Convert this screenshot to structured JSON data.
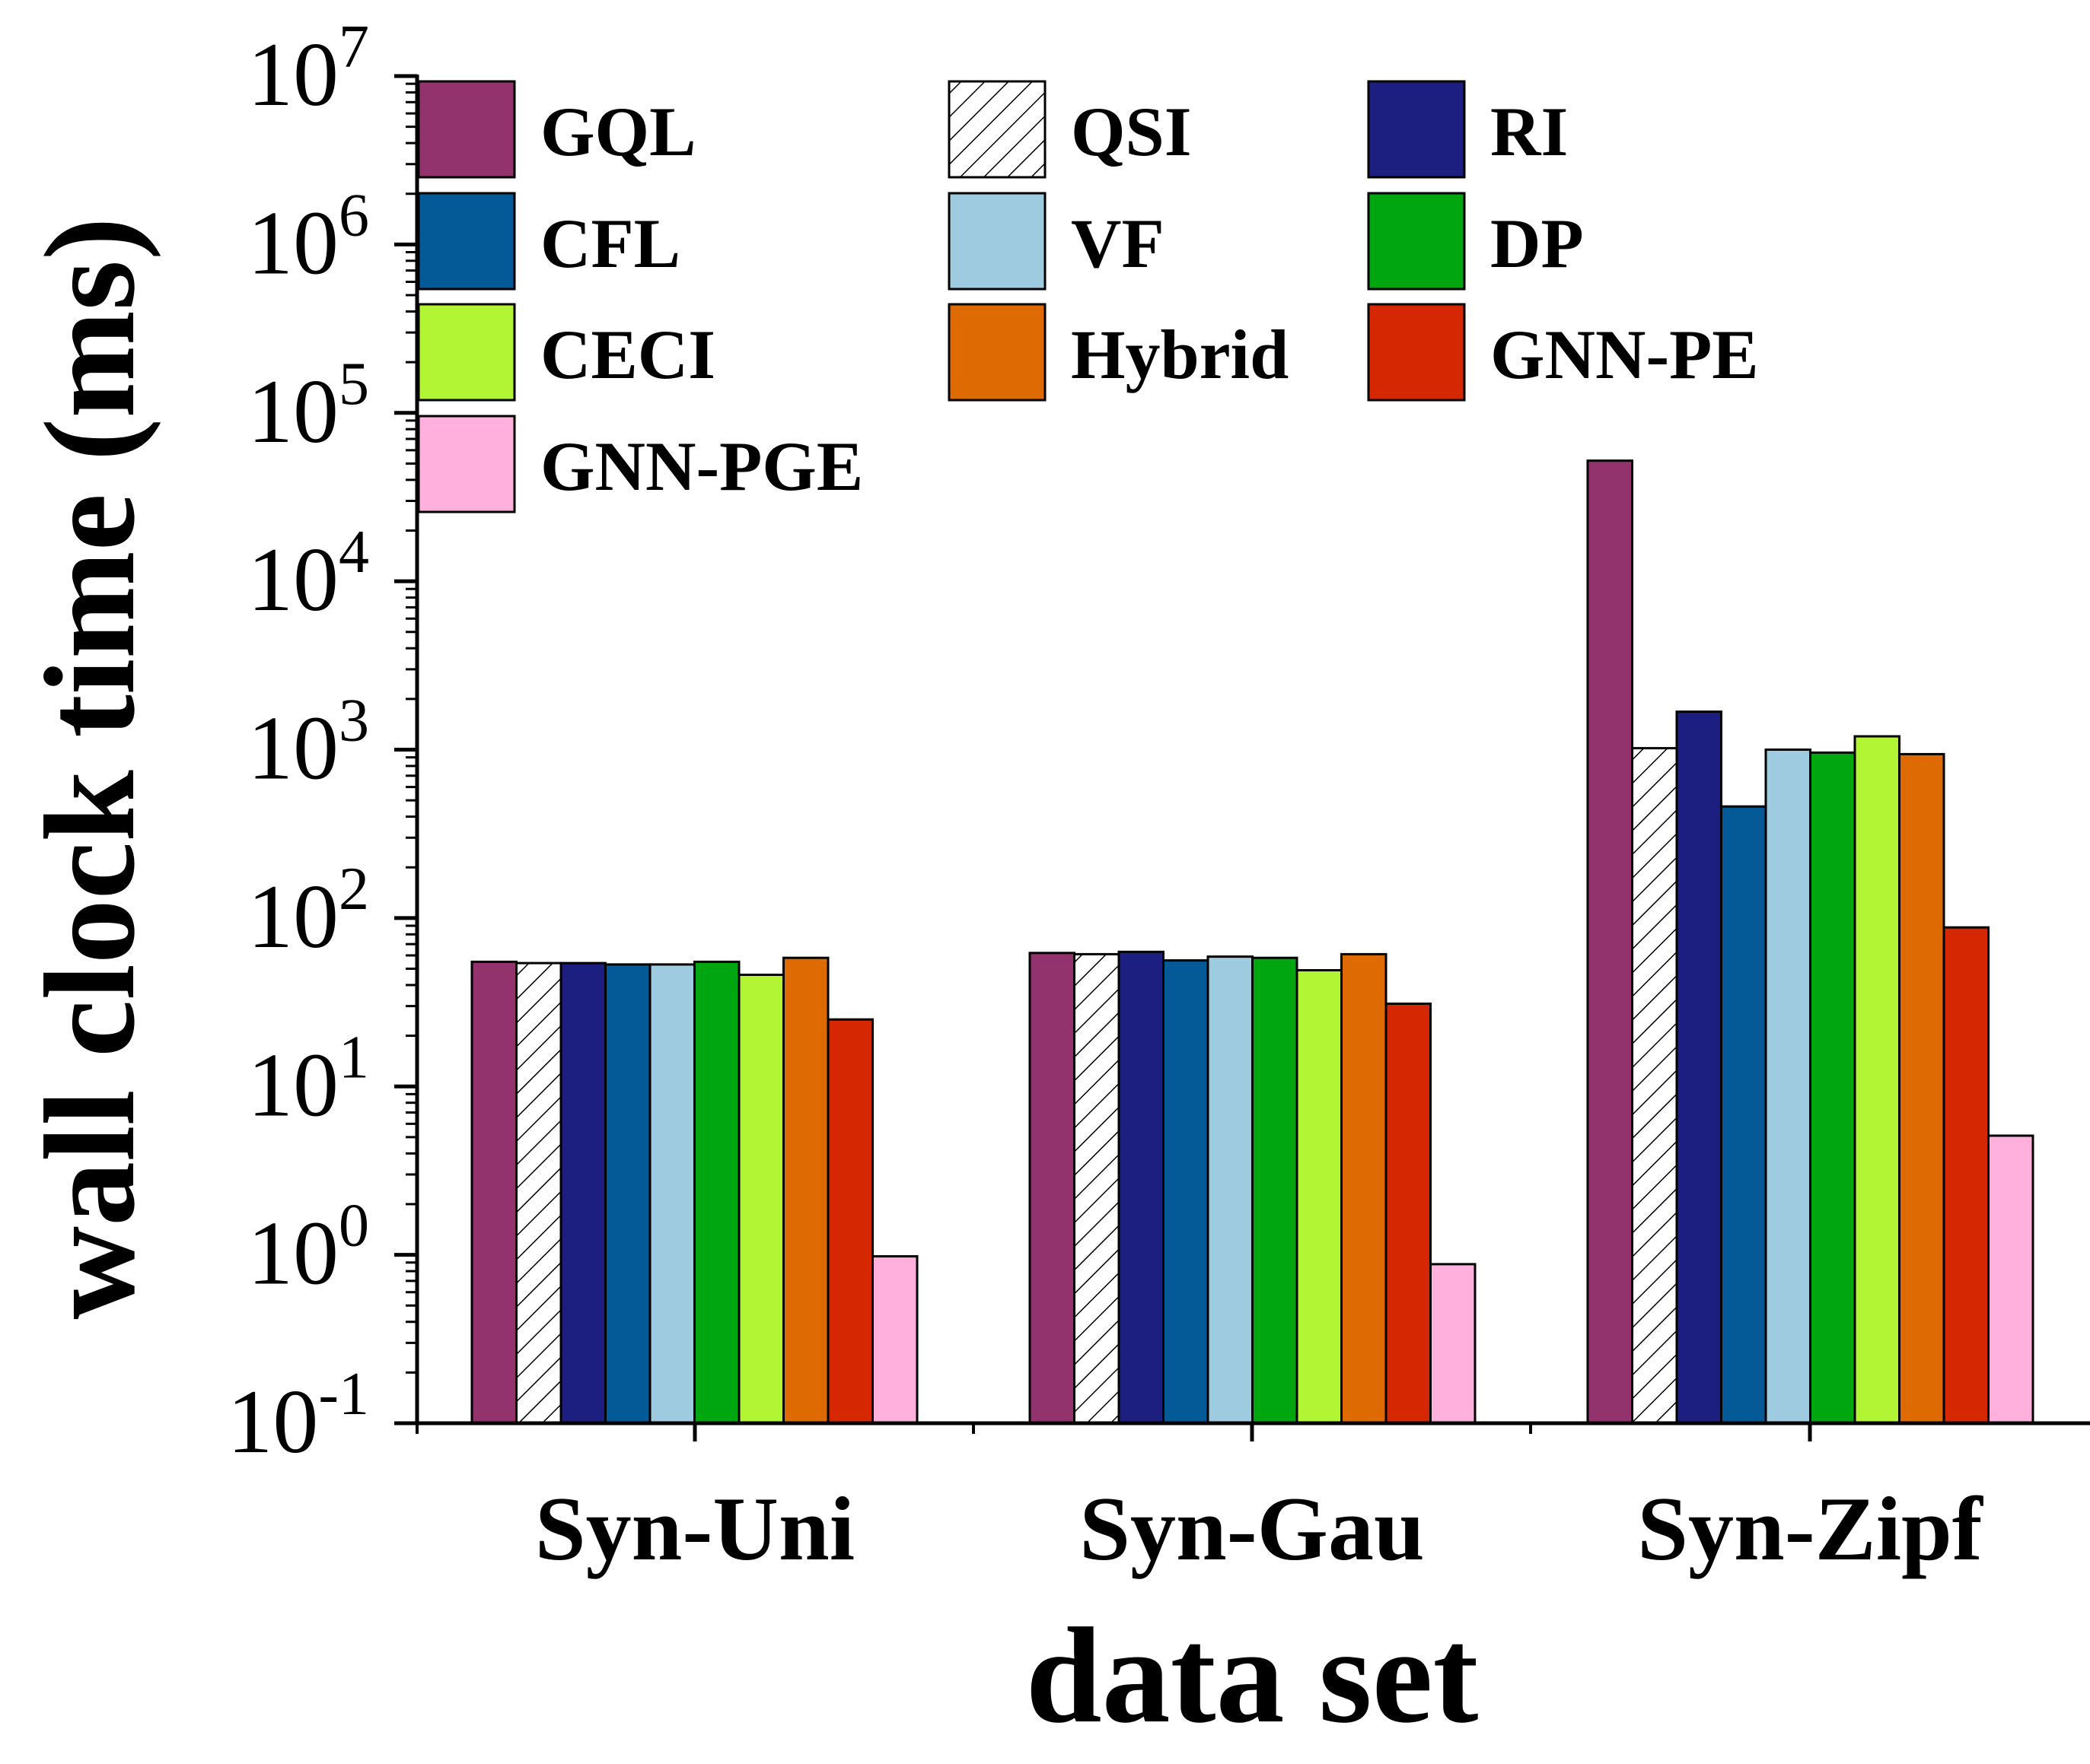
{
  "chart_data": {
    "type": "bar",
    "title": "",
    "xlabel": "data set",
    "ylabel": "wall clock time (ms)",
    "yscale": "log",
    "ylim": [
      0.1,
      10000000
    ],
    "yticks": [
      {
        "value": 0.1,
        "base": "10",
        "exp": "-1"
      },
      {
        "value": 1,
        "base": "10",
        "exp": "0"
      },
      {
        "value": 10,
        "base": "10",
        "exp": "1"
      },
      {
        "value": 100,
        "base": "10",
        "exp": "2"
      },
      {
        "value": 1000,
        "base": "10",
        "exp": "3"
      },
      {
        "value": 10000,
        "base": "10",
        "exp": "4"
      },
      {
        "value": 100000,
        "base": "10",
        "exp": "5"
      },
      {
        "value": 1000000,
        "base": "10",
        "exp": "6"
      },
      {
        "value": 10000000,
        "base": "10",
        "exp": "7"
      }
    ],
    "categories": [
      "Syn-Uni",
      "Syn-Gau",
      "Syn-Zipf"
    ],
    "legend_position": "top-left",
    "series": [
      {
        "name": "GQL",
        "color": "#93336e",
        "values": [
          55,
          62,
          52000
        ]
      },
      {
        "name": "QSI",
        "color": "#ffffff",
        "pattern": "hatch",
        "values": [
          54,
          61,
          1020
        ]
      },
      {
        "name": "RI",
        "color": "#1c1f80",
        "values": [
          54,
          63,
          1680
        ]
      },
      {
        "name": "CFL",
        "color": "#035a96",
        "values": [
          53,
          56,
          460
        ]
      },
      {
        "name": "VF",
        "color": "#9ecbdf",
        "values": [
          53,
          59,
          1000
        ]
      },
      {
        "name": "DP",
        "color": "#00a60f",
        "values": [
          55,
          58,
          960
        ]
      },
      {
        "name": "CECI",
        "color": "#b2f535",
        "values": [
          46,
          49,
          1200
        ]
      },
      {
        "name": "Hybrid",
        "color": "#dd6a02",
        "values": [
          58,
          61,
          940
        ]
      },
      {
        "name": "GNN-PE",
        "color": "#d42702",
        "values": [
          25,
          31,
          88
        ]
      },
      {
        "name": "GNN-PGE",
        "color": "#ffb0dd",
        "values": [
          0.98,
          0.88,
          5.1
        ]
      }
    ]
  }
}
